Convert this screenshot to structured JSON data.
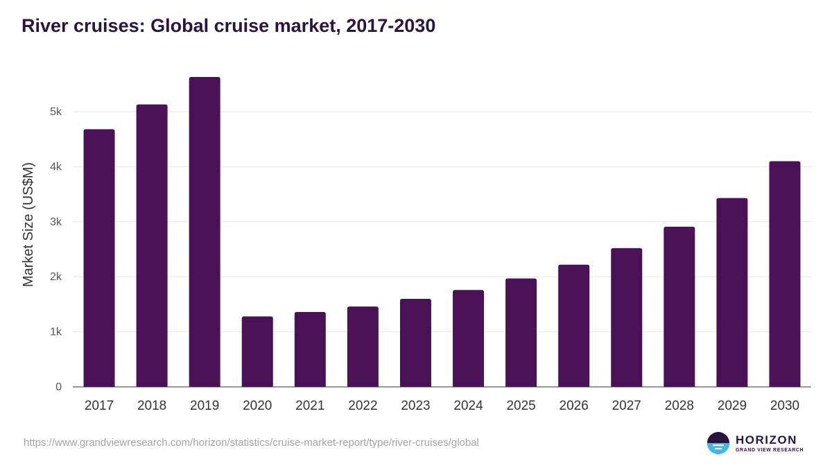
{
  "chart_data": {
    "type": "bar",
    "title": "River cruises: Global cruise market, 2017-2030",
    "xlabel": "",
    "ylabel": "Market Size (US$M)",
    "categories": [
      "2017",
      "2018",
      "2019",
      "2020",
      "2021",
      "2022",
      "2023",
      "2024",
      "2025",
      "2026",
      "2027",
      "2028",
      "2029",
      "2030"
    ],
    "values": [
      4680,
      5130,
      5630,
      1280,
      1360,
      1460,
      1600,
      1760,
      1970,
      2220,
      2520,
      2910,
      3430,
      4100
    ],
    "ylim": [
      0,
      6000
    ],
    "yticks": [
      0,
      1000,
      2000,
      3000,
      4000,
      5000
    ],
    "ytick_labels": [
      "0",
      "1k",
      "2k",
      "3k",
      "4k",
      "5k"
    ],
    "grid": true,
    "legend": "none",
    "colors": {
      "bar": "#4a1157",
      "grid": "#e6e6e6",
      "axis": "#333333",
      "tick_text": "#555555"
    }
  },
  "source_url": "https://www.grandviewresearch.com/horizon/statistics/cruise-market-report/type/river-cruises/global",
  "brand": {
    "name": "HORIZON",
    "subtitle": "GRAND VIEW RESEARCH",
    "logo_icon": "horizon-logo-icon",
    "colors": {
      "dark": "#2a1440",
      "light": "#41b8e8"
    }
  }
}
